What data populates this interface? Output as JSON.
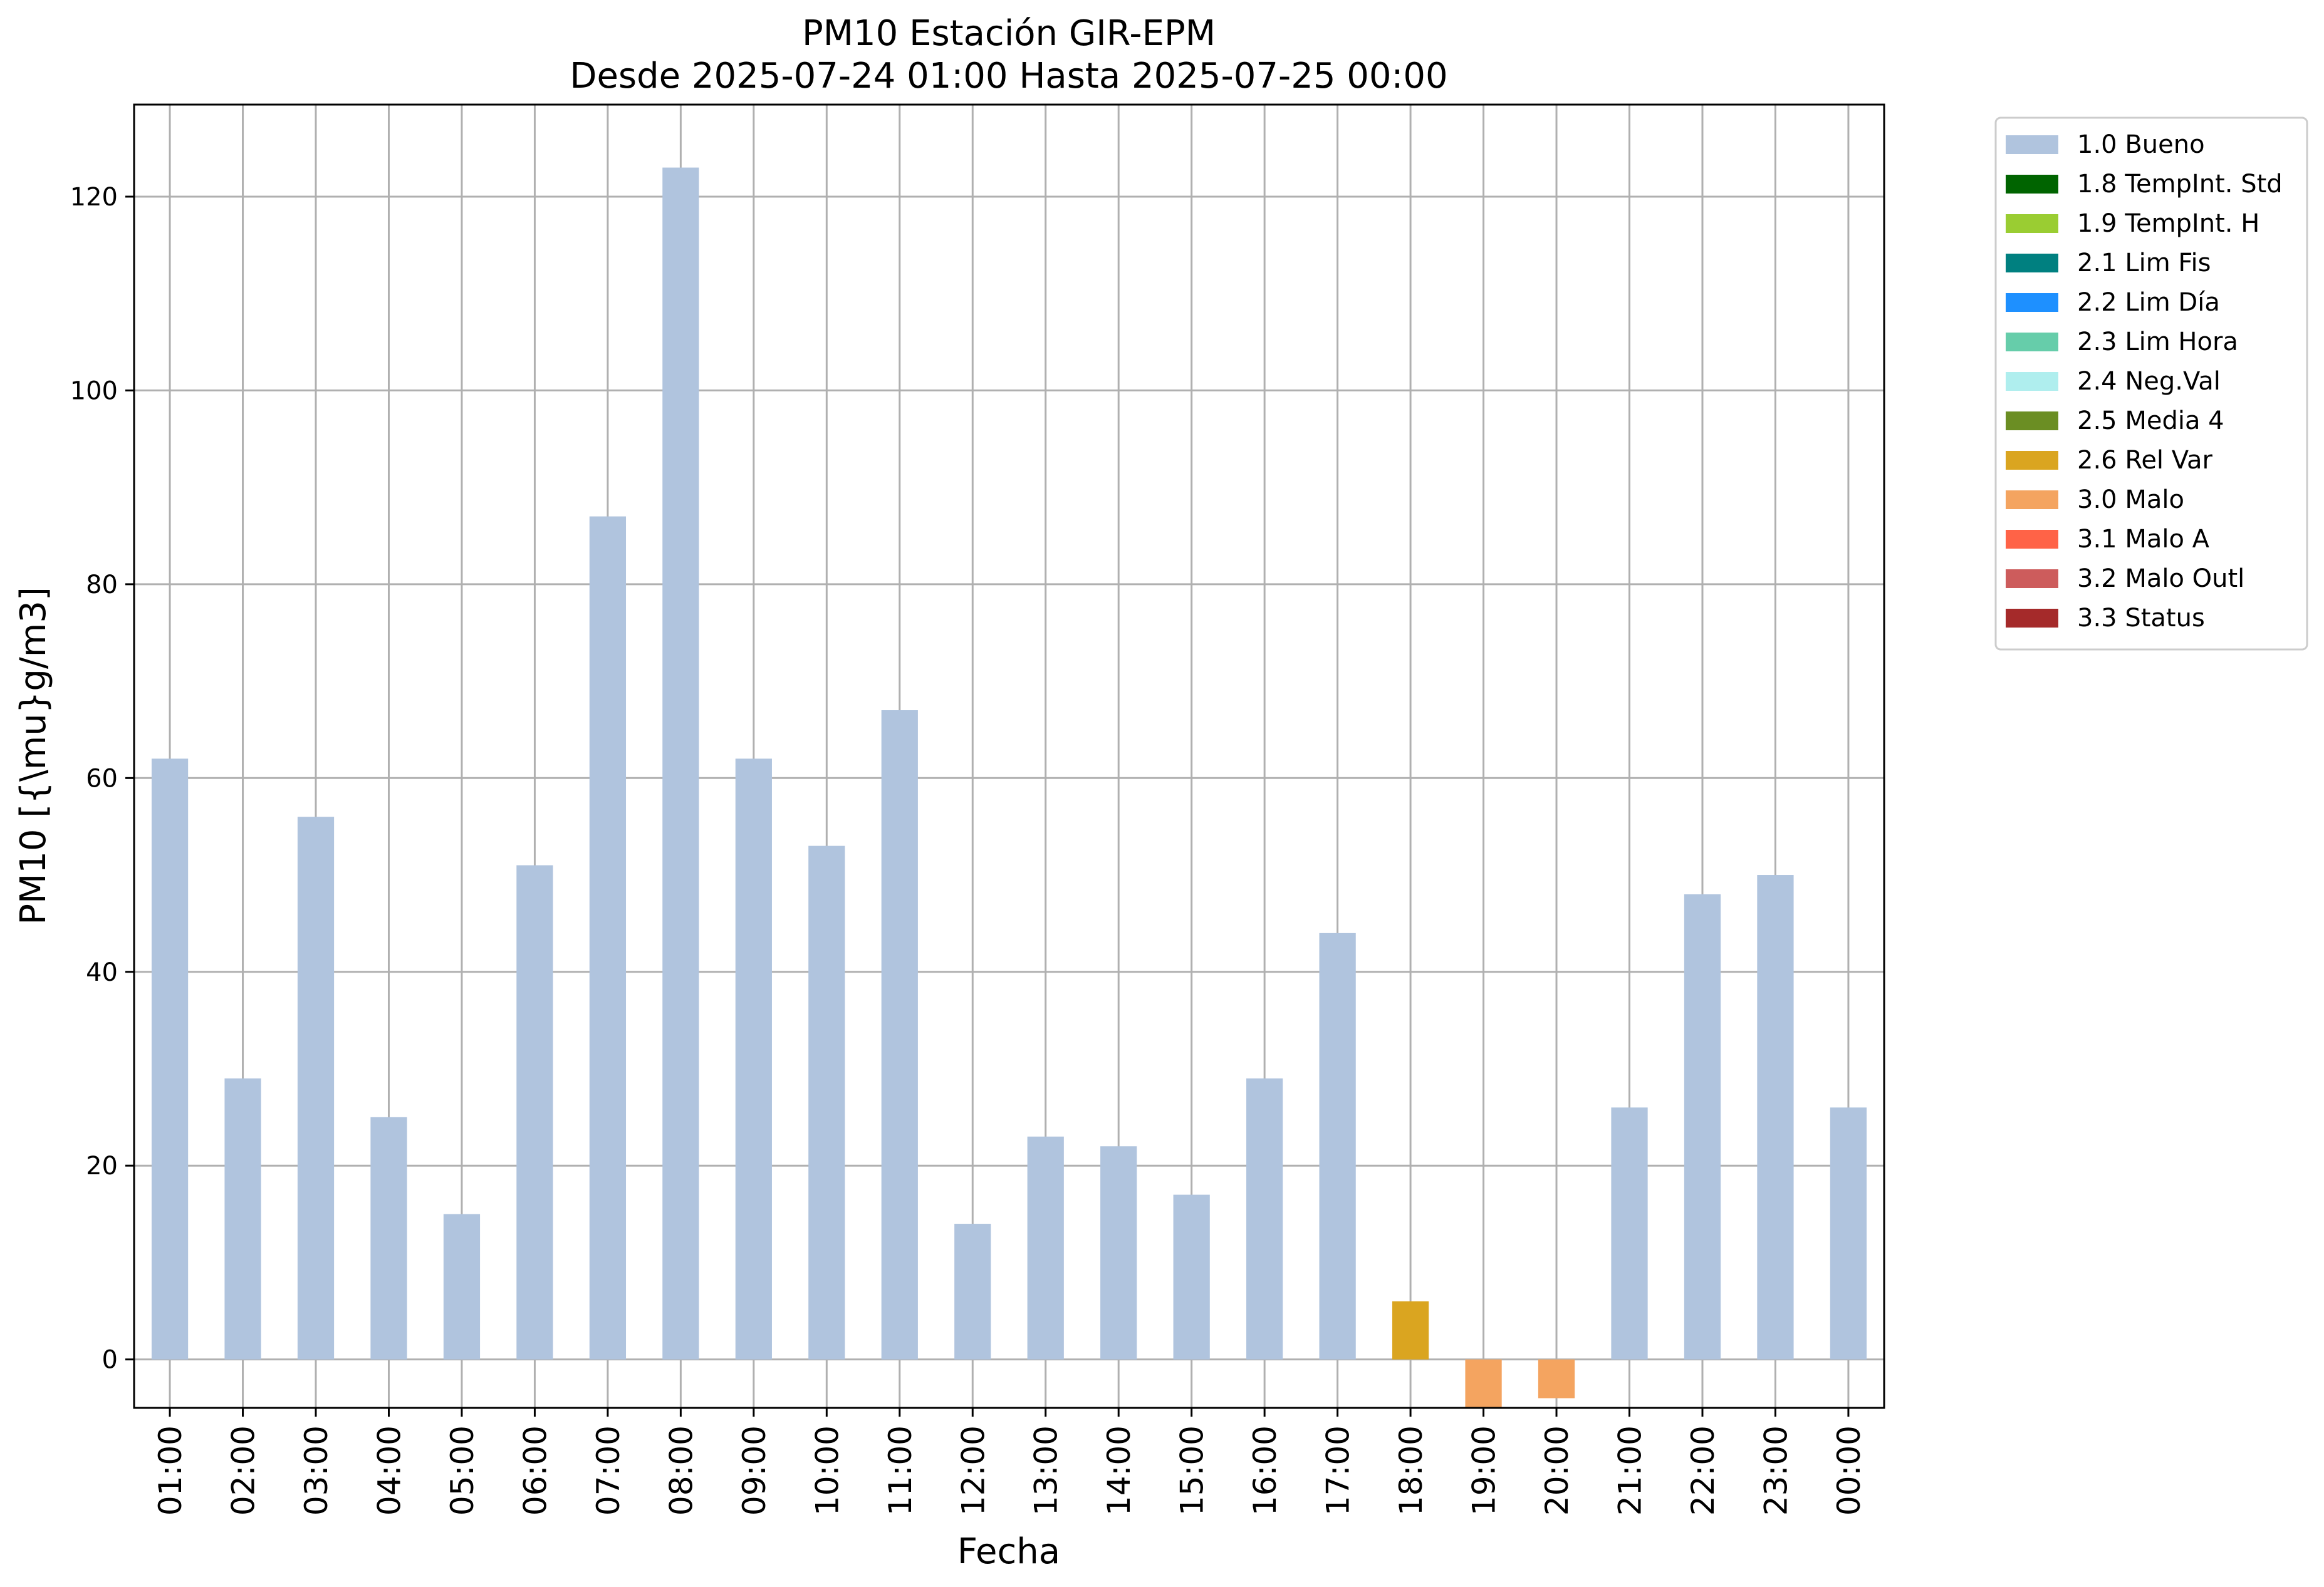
{
  "chart_data": {
    "type": "bar",
    "title": "PM10 Estación GIR-EPM",
    "subtitle": "Desde 2025-07-24 01:00 Hasta 2025-07-25 00:00",
    "xlabel": "Fecha",
    "ylabel": "PM10 [{\\mu}g/m3]",
    "ylim": [
      -5,
      129.5
    ],
    "yticks": [
      0,
      20,
      40,
      60,
      80,
      100,
      120
    ],
    "grid": true,
    "legend_position": "outside-top-right",
    "categories": [
      "01:00",
      "02:00",
      "03:00",
      "04:00",
      "05:00",
      "06:00",
      "07:00",
      "08:00",
      "09:00",
      "10:00",
      "11:00",
      "12:00",
      "13:00",
      "14:00",
      "15:00",
      "16:00",
      "17:00",
      "18:00",
      "19:00",
      "20:00",
      "21:00",
      "22:00",
      "23:00",
      "00:00"
    ],
    "values": [
      62,
      29,
      56,
      25,
      15,
      51,
      87,
      123,
      62,
      53,
      67,
      14,
      23,
      22,
      17,
      29,
      44,
      6,
      -6,
      -4,
      26,
      48,
      50,
      26
    ],
    "flags": [
      "1.0 Bueno",
      "1.0 Bueno",
      "1.0 Bueno",
      "1.0 Bueno",
      "1.0 Bueno",
      "1.0 Bueno",
      "1.0 Bueno",
      "1.0 Bueno",
      "1.0 Bueno",
      "1.0 Bueno",
      "1.0 Bueno",
      "1.0 Bueno",
      "1.0 Bueno",
      "1.0 Bueno",
      "1.0 Bueno",
      "1.0 Bueno",
      "1.0 Bueno",
      "2.6 Rel Var",
      "3.0 Malo",
      "3.0 Malo",
      "1.0 Bueno",
      "1.0 Bueno",
      "1.0 Bueno",
      "1.0 Bueno"
    ],
    "legend": [
      {
        "label": "1.0 Bueno",
        "color": "#b0c4de"
      },
      {
        "label": "1.8 TempInt. Std",
        "color": "#006400"
      },
      {
        "label": "1.9 TempInt. H",
        "color": "#9acd32"
      },
      {
        "label": "2.1 Lim Fis",
        "color": "#008080"
      },
      {
        "label": "2.2 Lim Día",
        "color": "#1e90ff"
      },
      {
        "label": "2.3 Lim Hora",
        "color": "#66cdaa"
      },
      {
        "label": "2.4 Neg.Val",
        "color": "#afeeee"
      },
      {
        "label": "2.5 Media 4",
        "color": "#6b8e23"
      },
      {
        "label": "2.6 Rel Var",
        "color": "#daa520"
      },
      {
        "label": "3.0 Malo",
        "color": "#f4a460"
      },
      {
        "label": "3.1 Malo A",
        "color": "#ff6347"
      },
      {
        "label": "3.2 Malo Outl",
        "color": "#cd5c5c"
      },
      {
        "label": "3.3 Status",
        "color": "#a52a2a"
      }
    ]
  }
}
